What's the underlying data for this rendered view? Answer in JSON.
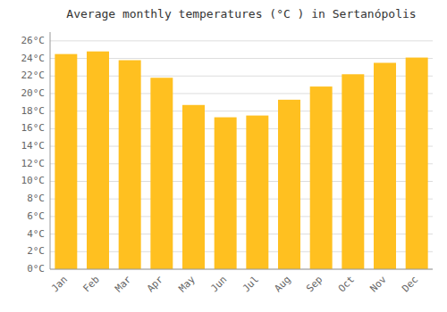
{
  "chart_data": {
    "type": "bar",
    "title": "Average monthly temperatures (°C ) in Sertanópolis",
    "categories": [
      "Jan",
      "Feb",
      "Mar",
      "Apr",
      "May",
      "Jun",
      "Jul",
      "Aug",
      "Sep",
      "Oct",
      "Nov",
      "Dec"
    ],
    "values": [
      24.5,
      24.8,
      23.8,
      21.8,
      18.7,
      17.3,
      17.5,
      19.3,
      20.8,
      22.2,
      23.5,
      24.1
    ],
    "color": "#FFC020",
    "ylim": [
      0,
      27
    ],
    "yticks": [
      {
        "value": 0,
        "label": "0°C"
      },
      {
        "value": 2,
        "label": "2°C"
      },
      {
        "value": 4,
        "label": "4°C"
      },
      {
        "value": 6,
        "label": "6°C"
      },
      {
        "value": 8,
        "label": "8°C"
      },
      {
        "value": 10,
        "label": "10°C"
      },
      {
        "value": 12,
        "label": "12°C"
      },
      {
        "value": 14,
        "label": "14°C"
      },
      {
        "value": 16,
        "label": "16°C"
      },
      {
        "value": 18,
        "label": "18°C"
      },
      {
        "value": 20,
        "label": "20°C"
      },
      {
        "value": 22,
        "label": "22°C"
      },
      {
        "value": 24,
        "label": "24°C"
      },
      {
        "value": 26,
        "label": "26°C"
      }
    ],
    "grid": true
  }
}
